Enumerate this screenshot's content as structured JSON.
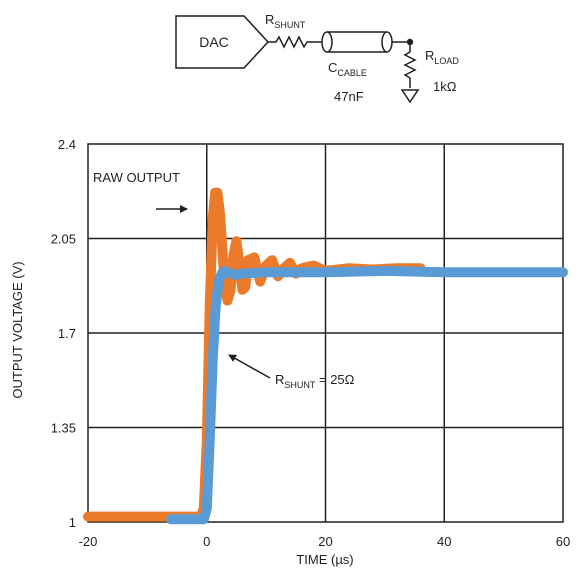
{
  "schematic": {
    "dac_label": "DAC",
    "rshunt_main": "R",
    "rshunt_sub": "SHUNT",
    "ccable_main": "C",
    "ccable_sub": "CABLE",
    "cable_value": "47nF",
    "rload_main": "R",
    "rload_sub": "LOAD",
    "load_value": "1kΩ"
  },
  "chart_data": {
    "type": "line",
    "xlabel": "TIME (µs)",
    "ylabel": "OUTPUT VOLTAGE (V)",
    "xlim": [
      -20,
      60
    ],
    "ylim": [
      1,
      2.4
    ],
    "x_ticks": [
      -20,
      0,
      20,
      40,
      60
    ],
    "x_tick_labels": [
      "-20",
      "0",
      "20",
      "40",
      "60"
    ],
    "y_ticks": [
      1,
      1.35,
      1.7,
      2.05,
      2.4
    ],
    "y_tick_labels": [
      "1",
      "1.35",
      "1.7",
      "2.05",
      "2.4"
    ],
    "grid": true,
    "colors": {
      "raw": "#ec7a2b",
      "shunt": "#5b9bd5",
      "grid": "#231f20"
    },
    "series": [
      {
        "key": "raw",
        "x": [
          -20,
          -1,
          -0.5,
          0,
          0.5,
          1,
          1.4,
          1.8,
          2.2,
          2.6,
          3,
          3.5,
          4,
          4.5,
          5,
          5.5,
          6,
          6.5,
          7,
          8,
          9,
          10,
          11,
          12,
          13,
          14,
          15,
          16,
          18,
          20,
          24,
          28,
          32,
          36
        ],
        "y": [
          1.02,
          1.02,
          1.05,
          1.3,
          1.8,
          2.12,
          2.22,
          2.22,
          2.15,
          2.02,
          1.88,
          1.82,
          1.86,
          1.99,
          2.04,
          1.96,
          1.86,
          1.87,
          1.97,
          1.98,
          1.89,
          1.95,
          1.97,
          1.91,
          1.94,
          1.96,
          1.92,
          1.94,
          1.95,
          1.93,
          1.94,
          1.935,
          1.94,
          1.94
        ]
      },
      {
        "key": "shunt",
        "x": [
          -6,
          -0.5,
          0,
          0.5,
          1,
          1.5,
          2,
          2.5,
          3,
          4,
          5,
          6,
          10,
          20,
          30,
          40,
          50,
          60
        ],
        "y": [
          1.01,
          1.01,
          1.05,
          1.3,
          1.6,
          1.8,
          1.89,
          1.92,
          1.93,
          1.92,
          1.915,
          1.92,
          1.925,
          1.925,
          1.93,
          1.925,
          1.925,
          1.925
        ]
      }
    ],
    "annotations": {
      "raw": "RAW OUTPUT",
      "shunt_main": "R",
      "shunt_sub": "SHUNT",
      "shunt_value": " = 25Ω"
    }
  }
}
